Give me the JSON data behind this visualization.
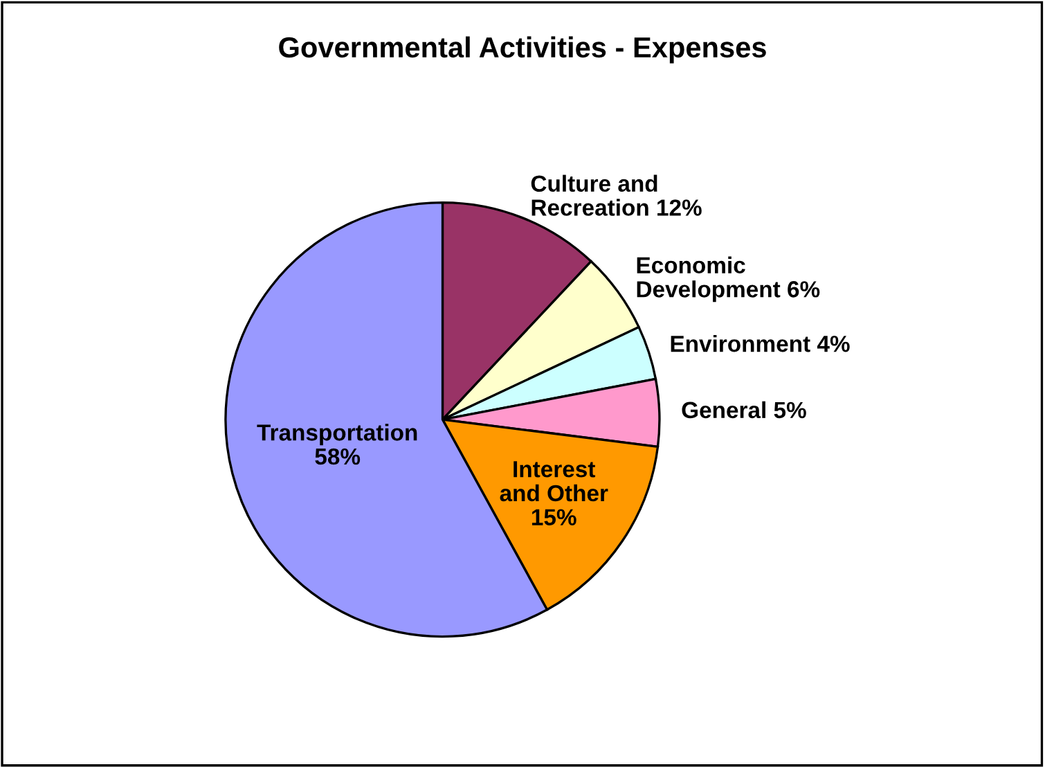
{
  "chart_data": {
    "type": "pie",
    "title": "Governmental Activities - Expenses",
    "categories": [
      "Culture and\nRecreation",
      "Economic\nDevelopment",
      "Environment",
      "General",
      "Interest\nand Other",
      "Transportation"
    ],
    "values": [
      12,
      6,
      4,
      5,
      15,
      58
    ],
    "value_labels": [
      "12%",
      "6%",
      "4%",
      "5%",
      "15%",
      "58%"
    ],
    "colors": [
      "#993366",
      "#ffffcc",
      "#ccffff",
      "#ff99cc",
      "#ff9900",
      "#9999ff"
    ]
  }
}
